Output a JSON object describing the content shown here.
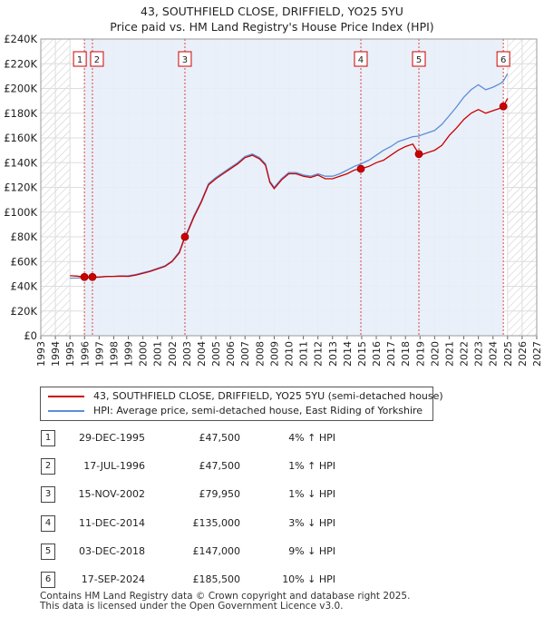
{
  "title_line1": "43, SOUTHFIELD CLOSE, DRIFFIELD, YO25 5YU",
  "title_line2": "Price paid vs. HM Land Registry's House Price Index (HPI)",
  "colors": {
    "property": "#cc0000",
    "hpi": "#5b8ed6",
    "grid": "#dddddd",
    "span": "#e8eef8",
    "hatch": "#bbbbbb",
    "marker_line": "#dd4444"
  },
  "legend": {
    "property": "43, SOUTHFIELD CLOSE, DRIFFIELD, YO25 5YU (semi-detached house)",
    "hpi": "HPI: Average price, semi-detached house, East Riding of Yorkshire"
  },
  "chart_data": {
    "type": "line",
    "xlim": [
      1993,
      2027
    ],
    "ylim": [
      0,
      240000
    ],
    "yticks": [
      "£0",
      "£20K",
      "£40K",
      "£60K",
      "£80K",
      "£100K",
      "£120K",
      "£140K",
      "£160K",
      "£180K",
      "£200K",
      "£220K",
      "£240K"
    ],
    "xticks": [
      "1993",
      "1994",
      "1995",
      "1996",
      "1997",
      "1998",
      "1999",
      "2000",
      "2001",
      "2002",
      "2003",
      "2004",
      "2005",
      "2006",
      "2007",
      "2008",
      "2009",
      "2010",
      "2011",
      "2012",
      "2013",
      "2014",
      "2015",
      "2016",
      "2017",
      "2018",
      "2019",
      "2020",
      "2021",
      "2022",
      "2023",
      "2024",
      "2025",
      "2026",
      "2027"
    ],
    "data_start": 1995.0,
    "data_end": 2025.0,
    "series": [
      {
        "name": "43, SOUTHFIELD CLOSE, DRIFFIELD, YO25 5YU (semi-detached house)",
        "points": [
          [
            1995.0,
            48500
          ],
          [
            1995.5,
            48200
          ],
          [
            1996.0,
            47500
          ],
          [
            1996.5,
            47500
          ],
          [
            1997.0,
            47500
          ],
          [
            1997.5,
            48000
          ],
          [
            1998.0,
            48000
          ],
          [
            1998.5,
            48200
          ],
          [
            1999.0,
            48000
          ],
          [
            1999.5,
            49000
          ],
          [
            2000.0,
            50500
          ],
          [
            2000.5,
            52000
          ],
          [
            2001.0,
            54000
          ],
          [
            2001.5,
            56000
          ],
          [
            2002.0,
            60000
          ],
          [
            2002.5,
            67000
          ],
          [
            2002.88,
            79950
          ],
          [
            2003.0,
            82000
          ],
          [
            2003.5,
            96000
          ],
          [
            2004.0,
            108000
          ],
          [
            2004.5,
            122000
          ],
          [
            2005.0,
            127000
          ],
          [
            2005.5,
            131000
          ],
          [
            2006.0,
            135000
          ],
          [
            2006.5,
            139000
          ],
          [
            2007.0,
            144000
          ],
          [
            2007.5,
            146000
          ],
          [
            2008.0,
            143000
          ],
          [
            2008.4,
            138000
          ],
          [
            2008.7,
            124000
          ],
          [
            2009.0,
            119000
          ],
          [
            2009.5,
            126000
          ],
          [
            2010.0,
            131000
          ],
          [
            2010.5,
            131000
          ],
          [
            2011.0,
            129000
          ],
          [
            2011.5,
            128000
          ],
          [
            2012.0,
            130000
          ],
          [
            2012.5,
            127000
          ],
          [
            2013.0,
            127000
          ],
          [
            2013.5,
            129000
          ],
          [
            2014.0,
            131000
          ],
          [
            2014.5,
            134000
          ],
          [
            2014.94,
            135000
          ],
          [
            2015.5,
            137000
          ],
          [
            2016.0,
            140000
          ],
          [
            2016.5,
            142000
          ],
          [
            2017.0,
            146000
          ],
          [
            2017.5,
            150000
          ],
          [
            2018.0,
            153000
          ],
          [
            2018.5,
            155000
          ],
          [
            2018.92,
            147000
          ],
          [
            2019.0,
            146000
          ],
          [
            2019.5,
            148000
          ],
          [
            2020.0,
            150000
          ],
          [
            2020.5,
            154000
          ],
          [
            2021.0,
            162000
          ],
          [
            2021.5,
            168000
          ],
          [
            2022.0,
            175000
          ],
          [
            2022.5,
            180000
          ],
          [
            2023.0,
            183000
          ],
          [
            2023.5,
            180000
          ],
          [
            2024.0,
            182000
          ],
          [
            2024.5,
            184000
          ],
          [
            2024.71,
            185500
          ],
          [
            2025.0,
            192000
          ]
        ]
      },
      {
        "name": "HPI: Average price, semi-detached house, East Riding of Yorkshire",
        "points": [
          [
            1995.0,
            46500
          ],
          [
            1995.5,
            46700
          ],
          [
            1996.0,
            46800
          ],
          [
            1996.5,
            47000
          ],
          [
            1997.0,
            47300
          ],
          [
            1997.5,
            47800
          ],
          [
            1998.0,
            48000
          ],
          [
            1998.5,
            48300
          ],
          [
            1999.0,
            48500
          ],
          [
            1999.5,
            49500
          ],
          [
            2000.0,
            51000
          ],
          [
            2000.5,
            52500
          ],
          [
            2001.0,
            54500
          ],
          [
            2001.5,
            56500
          ],
          [
            2002.0,
            60500
          ],
          [
            2002.5,
            68000
          ],
          [
            2002.88,
            80800
          ],
          [
            2003.0,
            83000
          ],
          [
            2003.5,
            97000
          ],
          [
            2004.0,
            109000
          ],
          [
            2004.5,
            123000
          ],
          [
            2005.0,
            128000
          ],
          [
            2005.5,
            132000
          ],
          [
            2006.0,
            136000
          ],
          [
            2006.5,
            140000
          ],
          [
            2007.0,
            145000
          ],
          [
            2007.5,
            147000
          ],
          [
            2008.0,
            144000
          ],
          [
            2008.4,
            139000
          ],
          [
            2008.7,
            125000
          ],
          [
            2009.0,
            120000
          ],
          [
            2009.5,
            127000
          ],
          [
            2010.0,
            132000
          ],
          [
            2010.5,
            132000
          ],
          [
            2011.0,
            130000
          ],
          [
            2011.5,
            129000
          ],
          [
            2012.0,
            131000
          ],
          [
            2012.5,
            129000
          ],
          [
            2013.0,
            129000
          ],
          [
            2013.5,
            131000
          ],
          [
            2014.0,
            134000
          ],
          [
            2014.5,
            137000
          ],
          [
            2014.94,
            139000
          ],
          [
            2015.5,
            142000
          ],
          [
            2016.0,
            146000
          ],
          [
            2016.5,
            150000
          ],
          [
            2017.0,
            153000
          ],
          [
            2017.5,
            157000
          ],
          [
            2018.0,
            159000
          ],
          [
            2018.5,
            161000
          ],
          [
            2018.92,
            161500
          ],
          [
            2019.0,
            162000
          ],
          [
            2019.5,
            164000
          ],
          [
            2020.0,
            166000
          ],
          [
            2020.5,
            171000
          ],
          [
            2021.0,
            178000
          ],
          [
            2021.5,
            185000
          ],
          [
            2022.0,
            193000
          ],
          [
            2022.5,
            199000
          ],
          [
            2023.0,
            203000
          ],
          [
            2023.5,
            199000
          ],
          [
            2024.0,
            201000
          ],
          [
            2024.5,
            204000
          ],
          [
            2024.71,
            206000
          ],
          [
            2025.0,
            212000
          ]
        ]
      }
    ],
    "sales": [
      {
        "id": "1",
        "x": 1995.99,
        "y": 47500
      },
      {
        "id": "2",
        "x": 1996.54,
        "y": 47500
      },
      {
        "id": "3",
        "x": 2002.88,
        "y": 79950
      },
      {
        "id": "4",
        "x": 2014.94,
        "y": 135000
      },
      {
        "id": "5",
        "x": 2018.92,
        "y": 147000
      },
      {
        "id": "6",
        "x": 2024.71,
        "y": 185500
      }
    ]
  },
  "sales_table": [
    {
      "num": "1",
      "date": "29-DEC-1995",
      "price": "£47,500",
      "hpi": "4% ↑ HPI"
    },
    {
      "num": "2",
      "date": "17-JUL-1996",
      "price": "£47,500",
      "hpi": "1% ↑ HPI"
    },
    {
      "num": "3",
      "date": "15-NOV-2002",
      "price": "£79,950",
      "hpi": "1% ↓ HPI"
    },
    {
      "num": "4",
      "date": "11-DEC-2014",
      "price": "£135,000",
      "hpi": "3% ↓ HPI"
    },
    {
      "num": "5",
      "date": "03-DEC-2018",
      "price": "£147,000",
      "hpi": "9% ↓ HPI"
    },
    {
      "num": "6",
      "date": "17-SEP-2024",
      "price": "£185,500",
      "hpi": "10% ↓ HPI"
    }
  ],
  "footer_line1": "Contains HM Land Registry data © Crown copyright and database right 2025.",
  "footer_line2": "This data is licensed under the Open Government Licence v3.0."
}
